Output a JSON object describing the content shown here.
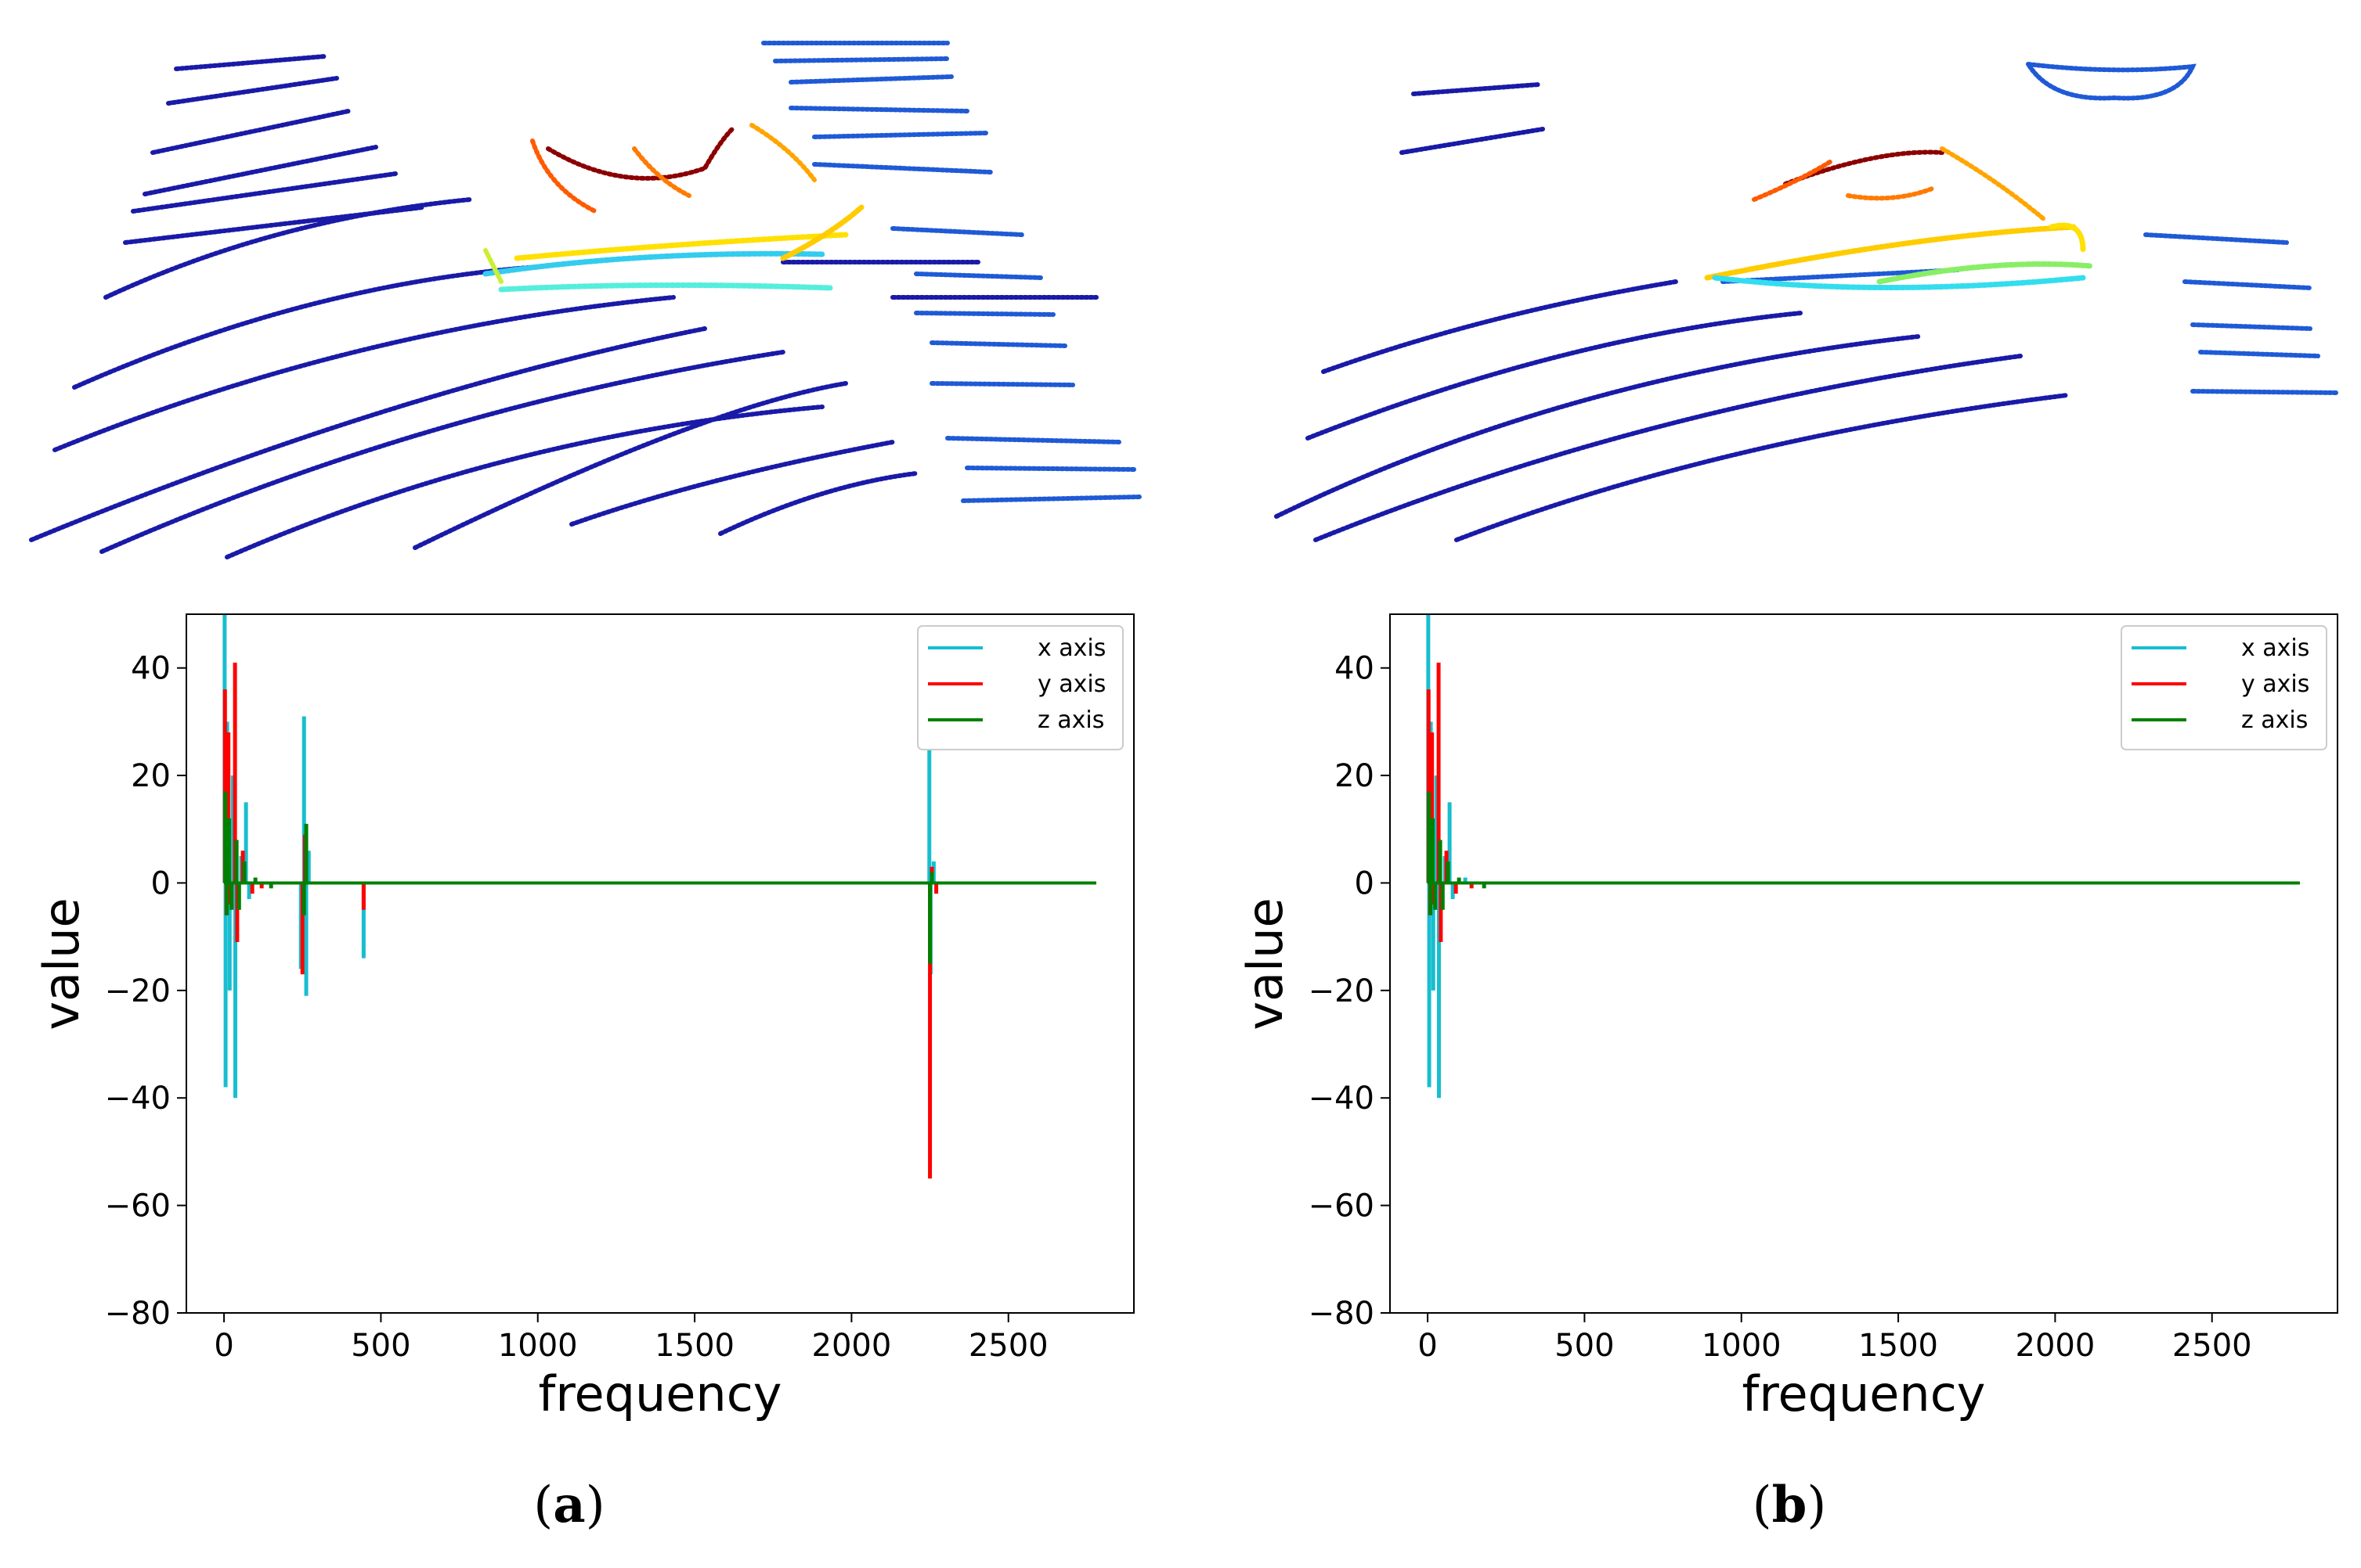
{
  "colors": {
    "x_axis": "#17becf",
    "y_axis": "#ff0000",
    "z_axis": "#008000",
    "near": "#1a1aa8",
    "mid": "#1f5ad6"
  },
  "captions": [
    {
      "open": "(",
      "letter": "a",
      "close": ")"
    },
    {
      "open": "(",
      "letter": "b",
      "close": ")"
    }
  ],
  "point_cloud_images": [
    {
      "description_name": "point-cloud-original"
    },
    {
      "description_name": "point-cloud-filtered"
    }
  ],
  "chart_data": [
    {
      "id": "a",
      "type": "line",
      "xlabel": "frequency",
      "ylabel": "value",
      "xlim": [
        -120,
        2900
      ],
      "ylim": [
        -80,
        50
      ],
      "xticks": [
        0,
        500,
        1000,
        1500,
        2000,
        2500
      ],
      "yticks": [
        40,
        20,
        0,
        -20,
        -40,
        -60,
        -80
      ],
      "xtick_labels": [
        "0",
        "500",
        "1000",
        "1500",
        "2000",
        "2500"
      ],
      "ytick_labels": [
        "40",
        "20",
        "0",
        "−20",
        "−40",
        "−60",
        "−80"
      ],
      "legend_position": "top-right",
      "x_end": 2780,
      "series": [
        {
          "name": "x axis",
          "color": "#17becf",
          "spikes": [
            [
              2,
              52
            ],
            [
              5,
              -38
            ],
            [
              10,
              30
            ],
            [
              18,
              -20
            ],
            [
              28,
              20
            ],
            [
              36,
              -40
            ],
            [
              55,
              5
            ],
            [
              70,
              15
            ],
            [
              80,
              -3
            ],
            [
              245,
              -16
            ],
            [
              255,
              31
            ],
            [
              262,
              -21
            ],
            [
              270,
              6
            ],
            [
              445,
              -14
            ],
            [
              2248,
              46
            ],
            [
              2252,
              -17
            ],
            [
              2262,
              4
            ]
          ]
        },
        {
          "name": "y axis",
          "color": "#ff0000",
          "spikes": [
            [
              3,
              36
            ],
            [
              8,
              -6
            ],
            [
              14,
              28
            ],
            [
              20,
              -4
            ],
            [
              35,
              41
            ],
            [
              42,
              -11
            ],
            [
              60,
              6
            ],
            [
              90,
              -2
            ],
            [
              120,
              -1
            ],
            [
              250,
              -17
            ],
            [
              258,
              9
            ],
            [
              445,
              -5
            ],
            [
              2250,
              -55
            ],
            [
              2256,
              3
            ],
            [
              2270,
              -2
            ]
          ]
        },
        {
          "name": "z axis",
          "color": "#008000",
          "spikes": [
            [
              4,
              17
            ],
            [
              9,
              -6
            ],
            [
              16,
              12
            ],
            [
              24,
              -5
            ],
            [
              40,
              8
            ],
            [
              48,
              -5
            ],
            [
              65,
              4
            ],
            [
              100,
              1
            ],
            [
              150,
              -1
            ],
            [
              255,
              -6
            ],
            [
              262,
              11
            ],
            [
              2250,
              -15
            ],
            [
              2256,
              2
            ]
          ]
        }
      ]
    },
    {
      "id": "b",
      "type": "line",
      "xlabel": "frequency",
      "ylabel": "value",
      "xlim": [
        -120,
        2900
      ],
      "ylim": [
        -80,
        50
      ],
      "xticks": [
        0,
        500,
        1000,
        1500,
        2000,
        2500
      ],
      "yticks": [
        40,
        20,
        0,
        -20,
        -40,
        -60,
        -80
      ],
      "xtick_labels": [
        "0",
        "500",
        "1000",
        "1500",
        "2000",
        "2500"
      ],
      "ytick_labels": [
        "40",
        "20",
        "0",
        "−20",
        "−40",
        "−60",
        "−80"
      ],
      "legend_position": "top-right",
      "x_end": 2780,
      "series": [
        {
          "name": "x axis",
          "color": "#17becf",
          "spikes": [
            [
              2,
              52
            ],
            [
              5,
              -38
            ],
            [
              10,
              30
            ],
            [
              18,
              -20
            ],
            [
              28,
              20
            ],
            [
              36,
              -40
            ],
            [
              55,
              5
            ],
            [
              70,
              15
            ],
            [
              80,
              -3
            ],
            [
              120,
              1
            ]
          ]
        },
        {
          "name": "y axis",
          "color": "#ff0000",
          "spikes": [
            [
              3,
              36
            ],
            [
              8,
              -6
            ],
            [
              14,
              28
            ],
            [
              20,
              -4
            ],
            [
              35,
              41
            ],
            [
              42,
              -11
            ],
            [
              60,
              6
            ],
            [
              90,
              -2
            ],
            [
              140,
              -1
            ]
          ]
        },
        {
          "name": "z axis",
          "color": "#008000",
          "spikes": [
            [
              4,
              17
            ],
            [
              9,
              -6
            ],
            [
              16,
              12
            ],
            [
              24,
              -5
            ],
            [
              40,
              8
            ],
            [
              48,
              -5
            ],
            [
              65,
              4
            ],
            [
              100,
              1
            ],
            [
              180,
              -1
            ]
          ]
        }
      ]
    }
  ]
}
